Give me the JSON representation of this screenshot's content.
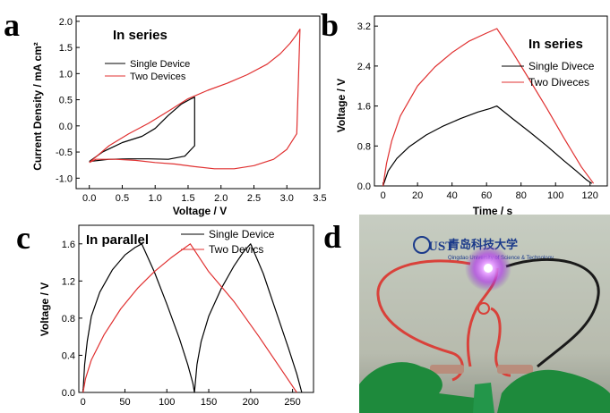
{
  "chart_data": [
    {
      "panel": "a",
      "type": "line",
      "title": "In series",
      "xlabel": "Voltage / V",
      "ylabel": "Current Density / mA cm²",
      "xlim": [
        -0.2,
        3.5
      ],
      "ylim": [
        -1.2,
        2.1
      ],
      "xticks": [
        0.0,
        0.5,
        1.0,
        1.5,
        2.0,
        2.5,
        3.0,
        3.5
      ],
      "xtick_labels": [
        "0.0",
        "0.5",
        "1.0",
        "1.5",
        "2.0",
        "2.5",
        "3.0",
        "3.5"
      ],
      "yticks": [
        -1.0,
        -0.5,
        0.0,
        0.5,
        1.0,
        1.5,
        2.0
      ],
      "ytick_labels": [
        "-1.0",
        "-0.5",
        "0.0",
        "0.5",
        "1.0",
        "1.5",
        "2.0"
      ],
      "legend_position": "upper-left",
      "series": [
        {
          "name": "Single Device",
          "color": "#000000",
          "x": [
            0.0,
            0.2,
            0.5,
            0.8,
            1.0,
            1.2,
            1.4,
            1.55,
            1.6,
            1.6,
            1.45,
            1.2,
            0.9,
            0.6,
            0.3,
            0.0
          ],
          "y": [
            -0.68,
            -0.5,
            -0.32,
            -0.2,
            -0.05,
            0.2,
            0.42,
            0.52,
            0.55,
            -0.38,
            -0.58,
            -0.64,
            -0.63,
            -0.63,
            -0.64,
            -0.68
          ]
        },
        {
          "name": "Two Devices",
          "color": "#e03030",
          "x": [
            0.0,
            0.3,
            0.6,
            0.9,
            1.2,
            1.5,
            1.8,
            2.1,
            2.4,
            2.7,
            2.9,
            3.05,
            3.15,
            3.2,
            3.15,
            3.0,
            2.8,
            2.5,
            2.2,
            1.9,
            1.6,
            1.3,
            1.0,
            0.7,
            0.4,
            0.1,
            0.0
          ],
          "y": [
            -0.7,
            -0.38,
            -0.15,
            0.05,
            0.28,
            0.52,
            0.68,
            0.82,
            0.98,
            1.18,
            1.38,
            1.58,
            1.75,
            1.85,
            -0.15,
            -0.45,
            -0.64,
            -0.76,
            -0.82,
            -0.82,
            -0.78,
            -0.73,
            -0.7,
            -0.66,
            -0.64,
            -0.64,
            -0.7
          ]
        }
      ]
    },
    {
      "panel": "b",
      "type": "line",
      "title": "In series",
      "xlabel": "Time / s",
      "ylabel": "Voltage / V",
      "xlim": [
        -5,
        130
      ],
      "ylim": [
        0,
        3.4
      ],
      "xticks": [
        0,
        20,
        40,
        60,
        80,
        100,
        120
      ],
      "xtick_labels": [
        "0",
        "20",
        "40",
        "60",
        "80",
        "100",
        "120"
      ],
      "yticks": [
        0.0,
        0.8,
        1.6,
        2.4,
        3.2
      ],
      "ytick_labels": [
        "0.0",
        "0.8",
        "1.6",
        "2.4",
        "3.2"
      ],
      "legend_position": "right",
      "series": [
        {
          "name": "Single Divece",
          "color": "#000000",
          "x": [
            0,
            3,
            8,
            15,
            25,
            35,
            45,
            55,
            62,
            66,
            75,
            85,
            95,
            105,
            112,
            118,
            121
          ],
          "y": [
            0.0,
            0.3,
            0.55,
            0.78,
            1.02,
            1.2,
            1.35,
            1.48,
            1.55,
            1.6,
            1.35,
            1.08,
            0.8,
            0.5,
            0.3,
            0.12,
            0.05
          ]
        },
        {
          "name": "Two Diveces",
          "color": "#e03030",
          "x": [
            0,
            2,
            5,
            10,
            20,
            30,
            40,
            50,
            60,
            66,
            75,
            85,
            95,
            105,
            115,
            122
          ],
          "y": [
            0.0,
            0.45,
            0.9,
            1.4,
            2.0,
            2.38,
            2.67,
            2.9,
            3.06,
            3.15,
            2.68,
            2.12,
            1.55,
            0.95,
            0.38,
            0.05
          ]
        }
      ]
    },
    {
      "panel": "c",
      "type": "line",
      "title": "In parallel",
      "xlabel": "",
      "ylabel": "Voltage / V",
      "xlim": [
        -5,
        275
      ],
      "ylim": [
        0,
        1.8
      ],
      "xticks": [
        0,
        50,
        100,
        150,
        200,
        250
      ],
      "xtick_labels": [
        "0",
        "50",
        "100",
        "150",
        "200",
        "250"
      ],
      "yticks": [
        0.0,
        0.4,
        0.8,
        1.2,
        1.6
      ],
      "ytick_labels": [
        "0.0",
        "0.4",
        "0.8",
        "1.2",
        "1.6"
      ],
      "legend_position": "top",
      "series": [
        {
          "name": "Single Device",
          "color": "#000000",
          "x": [
            0,
            2,
            5,
            10,
            20,
            35,
            50,
            62,
            70,
            85,
            100,
            115,
            125,
            131,
            133,
            136,
            141,
            150,
            165,
            180,
            192,
            200,
            215,
            230,
            245,
            255,
            261
          ],
          "y": [
            0.0,
            0.3,
            0.55,
            0.82,
            1.08,
            1.32,
            1.48,
            1.56,
            1.6,
            1.3,
            0.95,
            0.58,
            0.3,
            0.1,
            0.0,
            0.3,
            0.55,
            0.82,
            1.12,
            1.36,
            1.52,
            1.6,
            1.28,
            0.88,
            0.48,
            0.2,
            0.0
          ]
        },
        {
          "name": "Two Devics",
          "color": "#e03030",
          "x": [
            0,
            3,
            10,
            25,
            45,
            65,
            85,
            105,
            122,
            128,
            150,
            180,
            210,
            240,
            255
          ],
          "y": [
            0.0,
            0.15,
            0.35,
            0.62,
            0.9,
            1.12,
            1.3,
            1.45,
            1.56,
            1.6,
            1.3,
            0.98,
            0.6,
            0.2,
            0.0
          ]
        }
      ]
    }
  ],
  "panel_d": {
    "label": "d",
    "colors": {
      "background": "#2e6f52",
      "board": "#e8e0d6",
      "wire_red": "#d9413a",
      "wire_black": "#1a1a1a",
      "led_glow": "#c23cf0",
      "glove": "#1e8a3c"
    },
    "photo_logo_text": "QUST 青岛科技大学",
    "photo_subtext": "Qingdao University of Science & Technology"
  }
}
